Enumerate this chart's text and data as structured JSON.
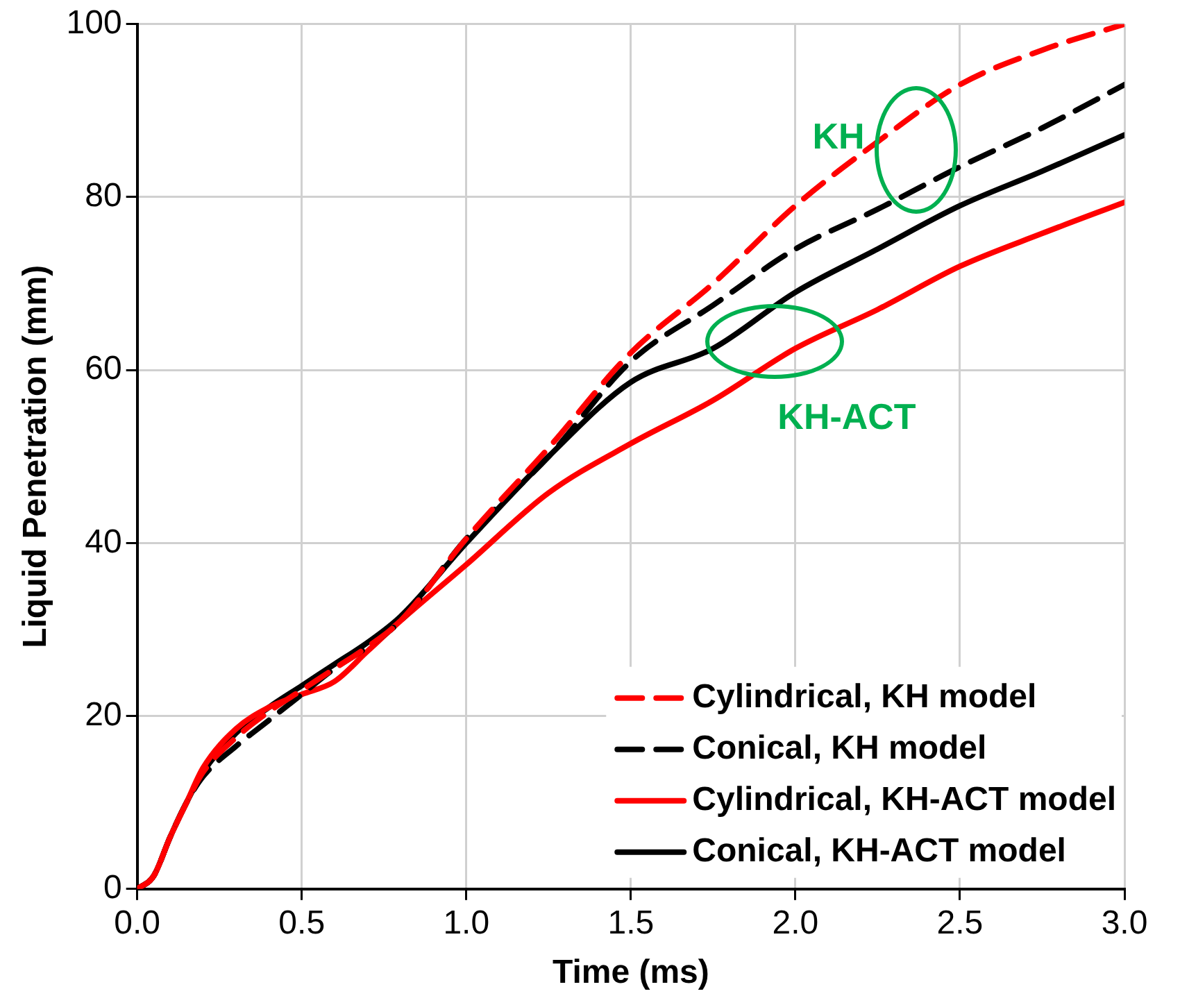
{
  "chart_data": {
    "type": "line",
    "xlabel": "Time (ms)",
    "ylabel": "Liquid Penetration (mm)",
    "xlim": [
      0,
      3
    ],
    "ylim": [
      0,
      100
    ],
    "xticks": [
      {
        "value": 0,
        "label": "0.0"
      },
      {
        "value": 0.5,
        "label": "0.5"
      },
      {
        "value": 1,
        "label": "1.0"
      },
      {
        "value": 1.5,
        "label": "1.5"
      },
      {
        "value": 2,
        "label": "2.0"
      },
      {
        "value": 2.5,
        "label": "2.5"
      },
      {
        "value": 3,
        "label": "3.0"
      }
    ],
    "yticks": [
      0,
      20,
      40,
      60,
      80,
      100
    ],
    "grid": true,
    "legend": "bottom right",
    "marker": "none",
    "x": [
      0,
      0.05,
      0.1,
      0.15,
      0.2,
      0.3,
      0.4,
      0.5,
      0.6,
      0.7,
      0.8,
      1.0,
      1.25,
      1.5,
      1.75,
      2.0,
      2.25,
      2.5,
      2.75,
      3.0
    ],
    "series": [
      {
        "name": "Cylindrical, KH model",
        "color": "#ff0000",
        "line_style": "dashed",
        "values": [
          0,
          1.5,
          6,
          10,
          13.5,
          17.5,
          20.5,
          23,
          25.5,
          28,
          31,
          40.5,
          51,
          62,
          70,
          79,
          86.4,
          93,
          97,
          100
        ]
      },
      {
        "name": "Conical, KH model",
        "color": "#000000",
        "line_style": "dashed",
        "values": [
          0,
          1.5,
          6,
          10,
          13,
          16.5,
          19.5,
          22.5,
          25.5,
          28,
          31,
          40.5,
          50,
          61,
          67.5,
          74,
          78.6,
          83.5,
          88,
          93
        ]
      },
      {
        "name": "Cylindrical, KH-ACT model",
        "color": "#ff0000",
        "line_style": "solid",
        "values": [
          0,
          1.5,
          6,
          10,
          14,
          18.5,
          21,
          22.5,
          24,
          27.5,
          31,
          37.5,
          45.8,
          51.5,
          56.5,
          62.5,
          67,
          72,
          75.8,
          79.4
        ]
      },
      {
        "name": "Conical, KH-ACT model",
        "color": "#000000",
        "line_style": "solid",
        "values": [
          0,
          1.5,
          6,
          10,
          13.5,
          18,
          21,
          23.5,
          26,
          28.5,
          31.5,
          40,
          50,
          58.6,
          62.5,
          69,
          74,
          79,
          83,
          87.2
        ]
      }
    ],
    "annotations": [
      "KH",
      "KH-ACT"
    ]
  }
}
